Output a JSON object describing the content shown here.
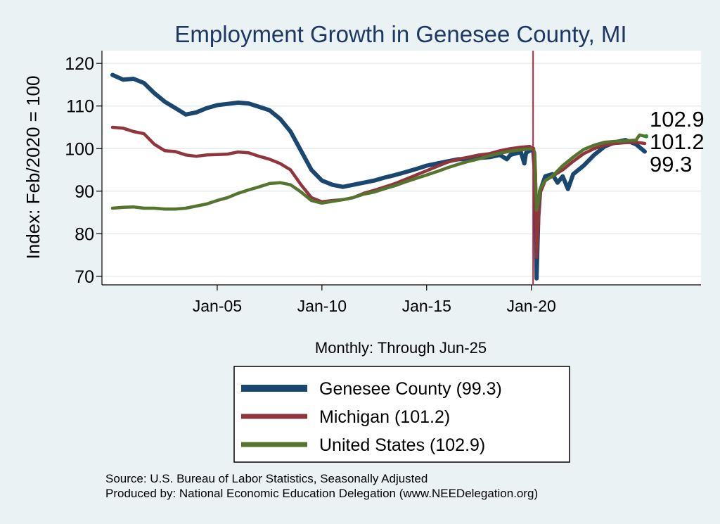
{
  "chart_data": {
    "type": "line",
    "title": "Employment Growth in Genesee  County, MI",
    "xlabel": "Monthly: Through Jun-25",
    "ylabel": "Index: Feb/2020 = 100",
    "x_range": [
      "2000-01",
      "2025-06"
    ],
    "ylim": [
      68,
      123
    ],
    "y_ticks": [
      70,
      80,
      90,
      100,
      110,
      120
    ],
    "x_ticks": [
      {
        "date": "2005-01",
        "label": "Jan-05"
      },
      {
        "date": "2010-01",
        "label": "Jan-10"
      },
      {
        "date": "2015-01",
        "label": "Jan-15"
      },
      {
        "date": "2020-01",
        "label": "Jan-20"
      }
    ],
    "vline": {
      "date": "2020-02",
      "color": "#c0243c"
    },
    "grid": true,
    "legend_position": "bottom",
    "series": [
      {
        "name": "Genesee  County (99.3)",
        "color": "#1a476f",
        "end_label": "99.3",
        "points": [
          [
            "2000-01",
            117.3
          ],
          [
            "2000-07",
            116.2
          ],
          [
            "2001-01",
            116.4
          ],
          [
            "2001-07",
            115.4
          ],
          [
            "2002-01",
            113.0
          ],
          [
            "2002-07",
            111.0
          ],
          [
            "2003-01",
            109.5
          ],
          [
            "2003-07",
            108.0
          ],
          [
            "2004-01",
            108.5
          ],
          [
            "2004-07",
            109.5
          ],
          [
            "2005-01",
            110.2
          ],
          [
            "2005-07",
            110.5
          ],
          [
            "2006-01",
            110.8
          ],
          [
            "2006-07",
            110.6
          ],
          [
            "2007-01",
            109.8
          ],
          [
            "2007-07",
            109.0
          ],
          [
            "2008-01",
            107.0
          ],
          [
            "2008-07",
            104.0
          ],
          [
            "2009-01",
            99.5
          ],
          [
            "2009-07",
            95.0
          ],
          [
            "2010-01",
            92.5
          ],
          [
            "2010-07",
            91.5
          ],
          [
            "2011-01",
            91.0
          ],
          [
            "2011-07",
            91.5
          ],
          [
            "2012-01",
            92.0
          ],
          [
            "2012-07",
            92.5
          ],
          [
            "2013-01",
            93.2
          ],
          [
            "2013-07",
            93.8
          ],
          [
            "2014-01",
            94.5
          ],
          [
            "2014-07",
            95.2
          ],
          [
            "2015-01",
            96.0
          ],
          [
            "2015-07",
            96.5
          ],
          [
            "2016-01",
            97.0
          ],
          [
            "2016-07",
            97.5
          ],
          [
            "2017-01",
            97.5
          ],
          [
            "2017-07",
            97.8
          ],
          [
            "2018-01",
            98.0
          ],
          [
            "2018-07",
            98.5
          ],
          [
            "2018-11",
            97.5
          ],
          [
            "2019-01",
            98.5
          ],
          [
            "2019-07",
            99.2
          ],
          [
            "2019-09",
            96.5
          ],
          [
            "2019-10",
            99.0
          ],
          [
            "2020-02",
            100.0
          ],
          [
            "2020-03",
            95.0
          ],
          [
            "2020-04",
            69.5
          ],
          [
            "2020-05",
            84.0
          ],
          [
            "2020-06",
            90.0
          ],
          [
            "2020-09",
            93.5
          ],
          [
            "2021-01",
            94.0
          ],
          [
            "2021-04",
            92.0
          ],
          [
            "2021-07",
            93.5
          ],
          [
            "2021-10",
            90.5
          ],
          [
            "2022-01",
            94.0
          ],
          [
            "2022-07",
            96.0
          ],
          [
            "2023-01",
            98.5
          ],
          [
            "2023-07",
            100.5
          ],
          [
            "2024-01",
            101.5
          ],
          [
            "2024-07",
            102.0
          ],
          [
            "2025-01",
            101.0
          ],
          [
            "2025-06",
            99.3
          ]
        ]
      },
      {
        "name": "Michigan (101.2)",
        "color": "#90353b",
        "end_label": "101.2",
        "points": [
          [
            "2000-01",
            105.0
          ],
          [
            "2000-07",
            104.8
          ],
          [
            "2001-01",
            104.0
          ],
          [
            "2001-07",
            103.5
          ],
          [
            "2002-01",
            101.0
          ],
          [
            "2002-07",
            99.5
          ],
          [
            "2003-01",
            99.3
          ],
          [
            "2003-07",
            98.5
          ],
          [
            "2004-01",
            98.2
          ],
          [
            "2004-07",
            98.5
          ],
          [
            "2005-01",
            98.6
          ],
          [
            "2005-07",
            98.7
          ],
          [
            "2006-01",
            99.2
          ],
          [
            "2006-07",
            99.0
          ],
          [
            "2007-01",
            98.2
          ],
          [
            "2007-07",
            97.5
          ],
          [
            "2008-01",
            96.5
          ],
          [
            "2008-07",
            95.0
          ],
          [
            "2009-01",
            91.5
          ],
          [
            "2009-07",
            88.5
          ],
          [
            "2010-01",
            87.5
          ],
          [
            "2010-07",
            87.8
          ],
          [
            "2011-01",
            88.0
          ],
          [
            "2011-07",
            88.5
          ],
          [
            "2012-01",
            89.5
          ],
          [
            "2012-07",
            90.2
          ],
          [
            "2013-01",
            91.0
          ],
          [
            "2013-07",
            91.8
          ],
          [
            "2014-01",
            92.8
          ],
          [
            "2014-07",
            93.8
          ],
          [
            "2015-01",
            94.8
          ],
          [
            "2015-07",
            95.8
          ],
          [
            "2016-01",
            96.8
          ],
          [
            "2016-07",
            97.5
          ],
          [
            "2017-01",
            98.0
          ],
          [
            "2017-07",
            98.5
          ],
          [
            "2018-01",
            98.8
          ],
          [
            "2018-07",
            99.5
          ],
          [
            "2019-01",
            100.0
          ],
          [
            "2019-07",
            100.3
          ],
          [
            "2019-12",
            100.5
          ],
          [
            "2020-02",
            100.0
          ],
          [
            "2020-03",
            98.5
          ],
          [
            "2020-04",
            74.5
          ],
          [
            "2020-05",
            83.0
          ],
          [
            "2020-06",
            89.5
          ],
          [
            "2020-09",
            92.5
          ],
          [
            "2021-01",
            93.5
          ],
          [
            "2021-07",
            95.0
          ],
          [
            "2022-01",
            97.0
          ],
          [
            "2022-07",
            98.8
          ],
          [
            "2023-01",
            100.0
          ],
          [
            "2023-07",
            100.8
          ],
          [
            "2024-01",
            101.2
          ],
          [
            "2024-07",
            101.4
          ],
          [
            "2025-01",
            101.5
          ],
          [
            "2025-06",
            101.2
          ]
        ]
      },
      {
        "name": "United States (102.9)",
        "color": "#55752f",
        "end_label": "102.9",
        "points": [
          [
            "2000-01",
            86.0
          ],
          [
            "2000-07",
            86.2
          ],
          [
            "2001-01",
            86.3
          ],
          [
            "2001-07",
            86.0
          ],
          [
            "2002-01",
            86.0
          ],
          [
            "2002-07",
            85.8
          ],
          [
            "2003-01",
            85.8
          ],
          [
            "2003-07",
            86.0
          ],
          [
            "2004-01",
            86.5
          ],
          [
            "2004-07",
            87.0
          ],
          [
            "2005-01",
            87.8
          ],
          [
            "2005-07",
            88.5
          ],
          [
            "2006-01",
            89.5
          ],
          [
            "2006-07",
            90.3
          ],
          [
            "2007-01",
            91.0
          ],
          [
            "2007-07",
            91.8
          ],
          [
            "2008-01",
            92.0
          ],
          [
            "2008-07",
            91.5
          ],
          [
            "2009-01",
            89.8
          ],
          [
            "2009-07",
            87.8
          ],
          [
            "2010-01",
            87.2
          ],
          [
            "2010-07",
            87.6
          ],
          [
            "2011-01",
            88.0
          ],
          [
            "2011-07",
            88.5
          ],
          [
            "2012-01",
            89.3
          ],
          [
            "2012-07",
            89.8
          ],
          [
            "2013-01",
            90.6
          ],
          [
            "2013-07",
            91.3
          ],
          [
            "2014-01",
            92.2
          ],
          [
            "2014-07",
            93.0
          ],
          [
            "2015-01",
            93.8
          ],
          [
            "2015-07",
            94.6
          ],
          [
            "2016-01",
            95.5
          ],
          [
            "2016-07",
            96.3
          ],
          [
            "2017-01",
            97.0
          ],
          [
            "2017-07",
            97.6
          ],
          [
            "2018-01",
            98.3
          ],
          [
            "2018-07",
            98.9
          ],
          [
            "2019-01",
            99.4
          ],
          [
            "2019-07",
            99.7
          ],
          [
            "2020-02",
            100.0
          ],
          [
            "2020-03",
            99.0
          ],
          [
            "2020-04",
            85.5
          ],
          [
            "2020-05",
            87.5
          ],
          [
            "2020-06",
            90.5
          ],
          [
            "2020-09",
            92.5
          ],
          [
            "2021-01",
            93.5
          ],
          [
            "2021-07",
            96.0
          ],
          [
            "2022-01",
            98.0
          ],
          [
            "2022-07",
            99.8
          ],
          [
            "2023-01",
            100.8
          ],
          [
            "2023-07",
            101.5
          ],
          [
            "2024-01",
            101.7
          ],
          [
            "2024-07",
            101.8
          ],
          [
            "2025-01",
            102.0
          ],
          [
            "2025-03",
            103.2
          ],
          [
            "2025-06",
            102.9
          ]
        ]
      }
    ]
  },
  "source_text": "Source: U.S. Bureau of Labor Statistics, Seasonally Adjusted",
  "produced_text": "Produced by: National Economic Education Delegation (www.NEEDelegation.org)"
}
